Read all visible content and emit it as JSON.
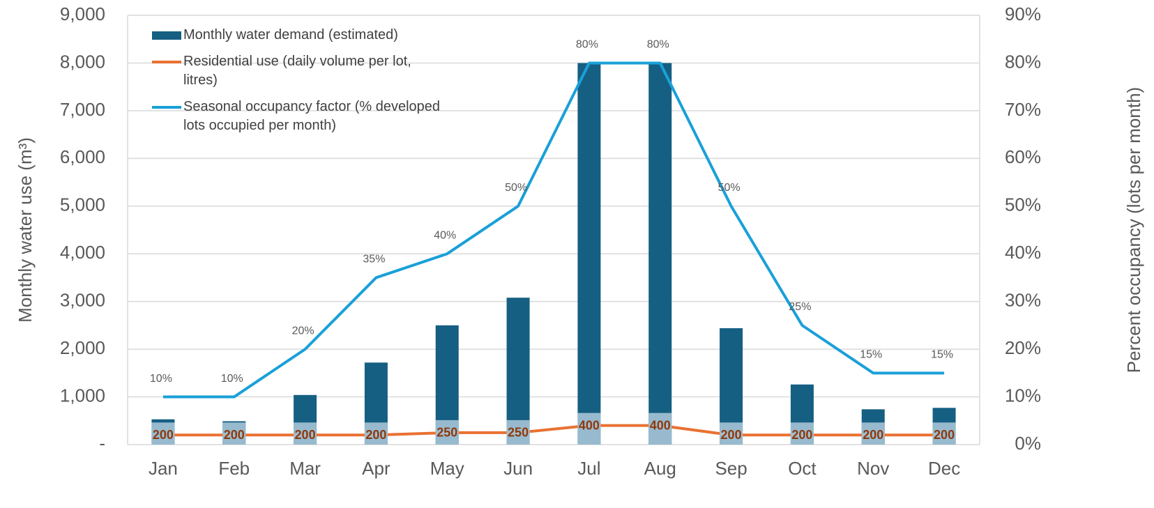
{
  "chart_data": {
    "type": "bar",
    "categories": [
      "Jan",
      "Feb",
      "Mar",
      "Apr",
      "May",
      "Jun",
      "Jul",
      "Aug",
      "Sep",
      "Oct",
      "Nov",
      "Dec"
    ],
    "series": [
      {
        "name": "Monthly water demand (estimated)",
        "color": "#155f82",
        "type": "bar",
        "values": [
          530,
          490,
          1040,
          1720,
          2500,
          3080,
          8000,
          8000,
          2440,
          1260,
          740,
          770
        ]
      },
      {
        "name": "Residential use (daily volume per lot, litres)",
        "color": "#e97132",
        "type": "line",
        "values": [
          200,
          200,
          200,
          200,
          250,
          250,
          400,
          400,
          200,
          200,
          200,
          200
        ]
      },
      {
        "name": "Seasonal occupancy factor (% developed lots occupied per month)",
        "color": "#1aa0d8",
        "type": "line",
        "axis": "y2",
        "values": [
          10,
          10,
          20,
          35,
          40,
          50,
          80,
          80,
          50,
          25,
          15,
          15
        ],
        "value_labels": [
          "10%",
          "10%",
          "20%",
          "35%",
          "40%",
          "50%",
          "80%",
          "80%",
          "50%",
          "25%",
          "15%",
          "15%"
        ]
      }
    ],
    "y_label": "Monthly water use (m³)",
    "y2_label": "Percent occupancy (lots per month)",
    "ylim": [
      0,
      9000
    ],
    "yticks": [
      {
        "value": 0,
        "label": "-"
      },
      {
        "value": 1000,
        "label": "1,000"
      },
      {
        "value": 2000,
        "label": "2,000"
      },
      {
        "value": 3000,
        "label": "3,000"
      },
      {
        "value": 4000,
        "label": "4,000"
      },
      {
        "value": 5000,
        "label": "5,000"
      },
      {
        "value": 6000,
        "label": "6,000"
      },
      {
        "value": 7000,
        "label": "7,000"
      },
      {
        "value": 8000,
        "label": "8,000"
      },
      {
        "value": 9000,
        "label": "9,000"
      }
    ],
    "y2lim": [
      0,
      90
    ],
    "y2ticks": [
      {
        "value": 0,
        "label": "0%"
      },
      {
        "value": 10,
        "label": "10%"
      },
      {
        "value": 20,
        "label": "20%"
      },
      {
        "value": 30,
        "label": "30%"
      },
      {
        "value": 40,
        "label": "40%"
      },
      {
        "value": 50,
        "label": "50%"
      },
      {
        "value": 60,
        "label": "60%"
      },
      {
        "value": 70,
        "label": "70%"
      },
      {
        "value": 80,
        "label": "80%"
      },
      {
        "value": 90,
        "label": "90%"
      }
    ],
    "grid": true,
    "legend": "top-left"
  }
}
